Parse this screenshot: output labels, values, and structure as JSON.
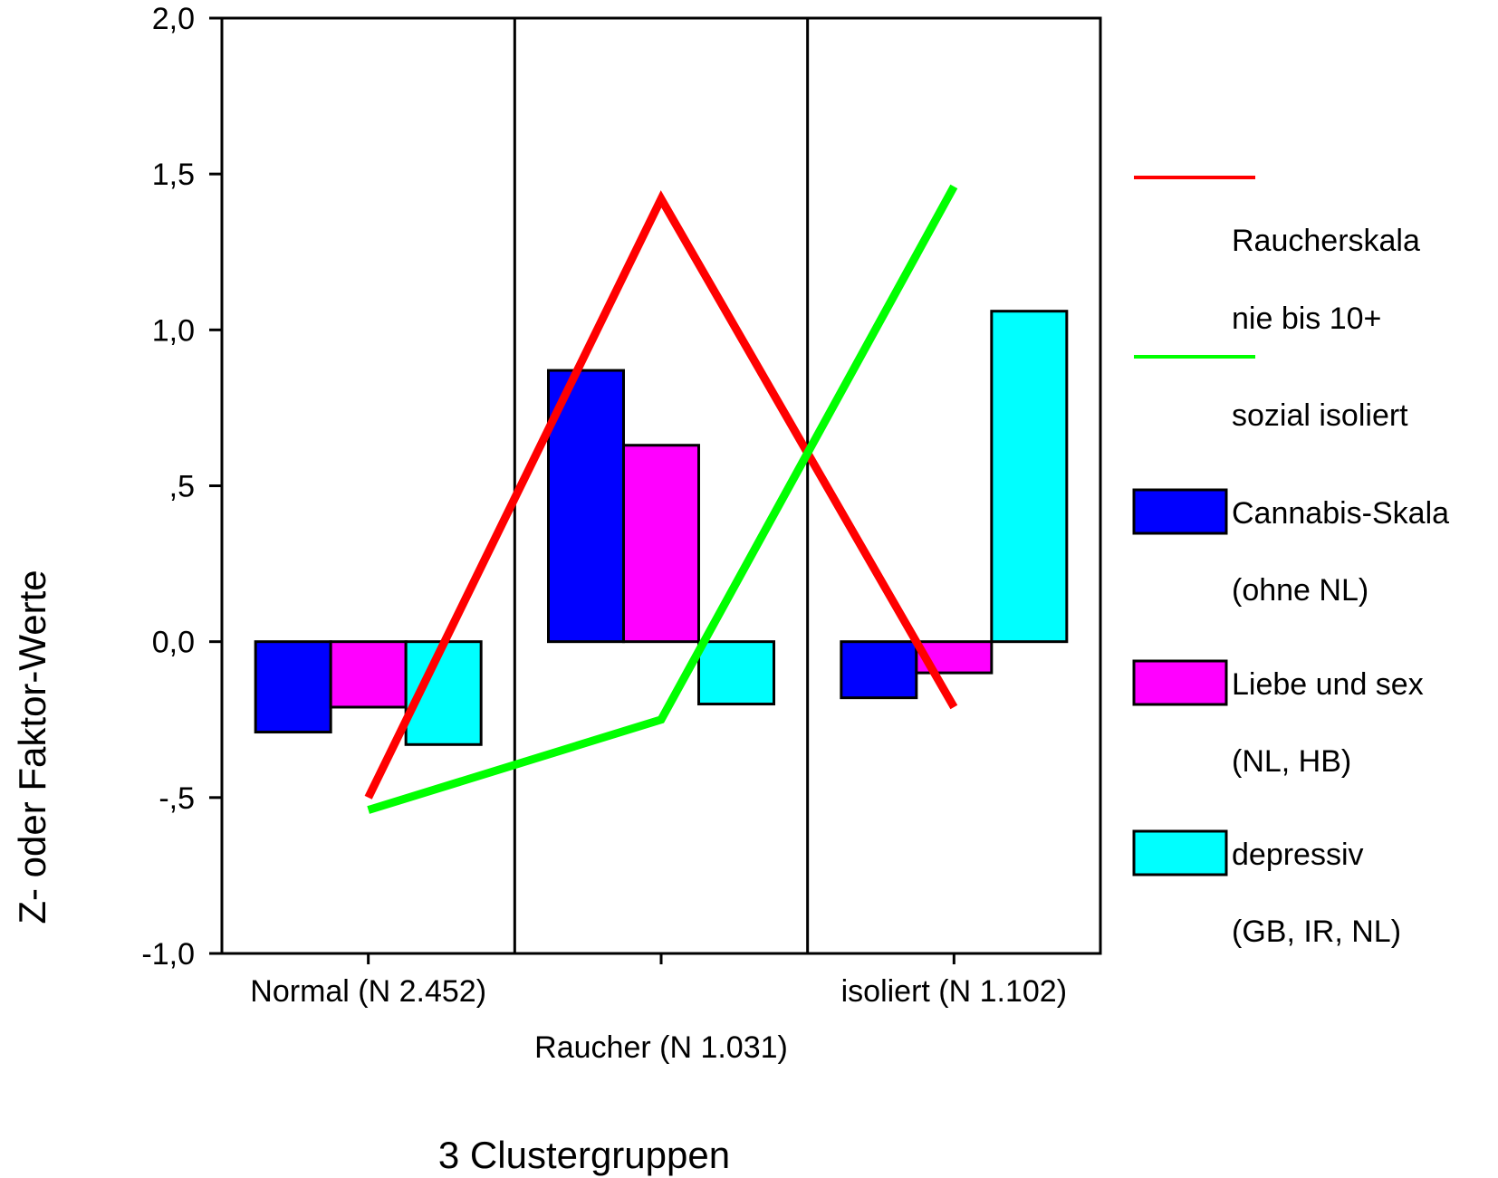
{
  "chart_data": {
    "type": "bar",
    "title": "",
    "xlabel": "3 Clustergruppen",
    "ylabel": "Z- oder Faktor-Werte",
    "ylim": [
      -1.0,
      2.0
    ],
    "yticks": [
      -1.0,
      -0.5,
      0.0,
      0.5,
      1.0,
      1.5,
      2.0
    ],
    "ytick_labels": [
      "-1,0",
      "-,5",
      "0,0",
      ",5",
      "1,0",
      "1,5",
      "2,0"
    ],
    "categories": [
      "Normal (N 2.452)",
      "Raucher (N 1.031)",
      "isoliert (N 1.102)"
    ],
    "grid": "vertical separators between clusters",
    "legend_position": "right",
    "bar_series": [
      {
        "name_lines": [
          "Cannabis-Skala",
          "(ohne NL)"
        ],
        "color": "#0000ff",
        "values": [
          -0.29,
          0.87,
          -0.18
        ]
      },
      {
        "name_lines": [
          "Liebe und sex",
          "(NL, HB)"
        ],
        "color": "#ff00ff",
        "values": [
          -0.21,
          0.63,
          -0.1
        ]
      },
      {
        "name_lines": [
          "depressiv",
          "(GB, IR, NL)"
        ],
        "color": "#00ffff",
        "values": [
          -0.33,
          -0.2,
          1.06
        ]
      }
    ],
    "line_series": [
      {
        "name_lines": [
          "Raucherskala",
          "nie bis 10+"
        ],
        "color": "#ff0000",
        "values": [
          -0.5,
          1.42,
          -0.21
        ]
      },
      {
        "name_lines": [
          "sozial isoliert"
        ],
        "color": "#00ff00",
        "values": [
          -0.54,
          -0.25,
          1.46
        ]
      }
    ]
  }
}
